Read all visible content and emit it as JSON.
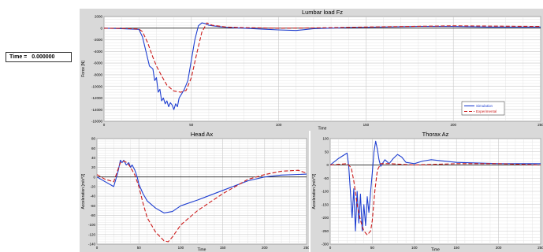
{
  "time_display": {
    "label": "Time =",
    "value": "0.000000"
  },
  "colors": {
    "simulation": "#1f3fd1",
    "experimental": "#cc1a1a",
    "panel": "#d9d9d9",
    "plot": "#ffffff",
    "grid": "#c8c8c8"
  },
  "chart_data": [
    {
      "type": "line",
      "title": "Lumbar load Fz",
      "xlabel": "Time",
      "ylabel": "Force [N]",
      "xlim": [
        0,
        250
      ],
      "ylim": [
        -16000,
        2000
      ],
      "xticks": [
        0,
        50,
        100,
        150,
        200,
        250
      ],
      "yticks": [
        2000,
        0,
        -2000,
        -4000,
        -6000,
        -8000,
        -10000,
        -12000,
        -14000,
        -16000
      ],
      "legend": "bottom-right",
      "series": [
        {
          "name": "Simulation",
          "style": "solid",
          "x": [
            0,
            10,
            20,
            22,
            24,
            26,
            28,
            29,
            30,
            31,
            32,
            33,
            34,
            35,
            36,
            37,
            38,
            39,
            40,
            41,
            42,
            43,
            44,
            45,
            46,
            48,
            50,
            52,
            54,
            56,
            58,
            60,
            65,
            70,
            80,
            90,
            100,
            110,
            120,
            140,
            160,
            180,
            200,
            220,
            250
          ],
          "y": [
            0,
            -100,
            -200,
            -1500,
            -4000,
            -6500,
            -7000,
            -9000,
            -8500,
            -11000,
            -10500,
            -12500,
            -12000,
            -13000,
            -12500,
            -13500,
            -12800,
            -13200,
            -14000,
            -13000,
            -13500,
            -12000,
            -11500,
            -11000,
            -10500,
            -9000,
            -5500,
            -2000,
            400,
            900,
            800,
            500,
            300,
            150,
            0,
            -150,
            -300,
            -400,
            -100,
            100,
            200,
            300,
            300,
            200,
            200
          ]
        },
        {
          "name": "Experimental",
          "style": "dashed",
          "x": [
            0,
            10,
            20,
            22,
            25,
            28,
            30,
            33,
            36,
            40,
            44,
            47,
            50,
            53,
            56,
            59,
            62,
            70,
            80,
            100,
            120,
            150,
            200,
            250
          ],
          "y": [
            0,
            -50,
            -150,
            -600,
            -2500,
            -5000,
            -6500,
            -8200,
            -9800,
            -10800,
            -11000,
            -10700,
            -8500,
            -4500,
            -700,
            900,
            500,
            200,
            100,
            0,
            50,
            200,
            400,
            300
          ]
        }
      ]
    },
    {
      "type": "line",
      "title": "Head Ax",
      "xlabel": "Time",
      "ylabel": "Acceleration [m/s^2]",
      "xlim": [
        0,
        250
      ],
      "ylim": [
        -140,
        80
      ],
      "xticks": [
        0,
        50,
        100,
        150,
        200,
        250
      ],
      "yticks": [
        80,
        60,
        40,
        20,
        0,
        -20,
        -40,
        -60,
        -80,
        -100,
        -120,
        -140
      ],
      "series": [
        {
          "name": "Simulation",
          "style": "solid",
          "x": [
            0,
            10,
            20,
            25,
            28,
            30,
            32,
            35,
            38,
            40,
            42,
            45,
            48,
            50,
            55,
            60,
            70,
            80,
            90,
            100,
            120,
            150,
            180,
            200,
            220,
            250
          ],
          "y": [
            0,
            -10,
            -20,
            10,
            35,
            30,
            35,
            25,
            30,
            20,
            25,
            15,
            0,
            -15,
            -35,
            -50,
            -65,
            -75,
            -72,
            -60,
            -48,
            -28,
            -8,
            0,
            4,
            6
          ]
        },
        {
          "name": "Experimental",
          "style": "dashed",
          "x": [
            0,
            10,
            20,
            25,
            28,
            32,
            36,
            40,
            45,
            50,
            55,
            60,
            70,
            80,
            85,
            90,
            100,
            120,
            150,
            180,
            200,
            220,
            240,
            250
          ],
          "y": [
            5,
            -5,
            -10,
            15,
            30,
            33,
            30,
            20,
            5,
            -20,
            -55,
            -85,
            -115,
            -133,
            -135,
            -125,
            -100,
            -70,
            -35,
            -5,
            5,
            12,
            14,
            8
          ]
        }
      ]
    },
    {
      "type": "line",
      "title": "Thorax Az",
      "xlabel": "Time",
      "ylabel": "Acceleration [m/s^2]",
      "xlim": [
        0,
        250
      ],
      "ylim": [
        -300,
        100
      ],
      "xticks": [
        0,
        50,
        100,
        150,
        200,
        250
      ],
      "yticks": [
        100,
        50,
        0,
        -50,
        -100,
        -150,
        -200,
        -250,
        -300
      ],
      "series": [
        {
          "name": "Simulation",
          "style": "solid",
          "x": [
            0,
            10,
            20,
            22,
            24,
            26,
            28,
            30,
            32,
            34,
            36,
            38,
            40,
            42,
            44,
            46,
            48,
            50,
            52,
            54,
            56,
            58,
            60,
            62,
            65,
            70,
            75,
            80,
            85,
            90,
            100,
            110,
            120,
            150,
            200,
            250
          ],
          "y": [
            0,
            25,
            45,
            -5,
            -100,
            -200,
            -90,
            -250,
            -100,
            -220,
            -110,
            -250,
            -150,
            -230,
            -120,
            -180,
            -100,
            -30,
            50,
            90,
            60,
            20,
            -5,
            5,
            20,
            5,
            25,
            40,
            30,
            10,
            5,
            15,
            20,
            10,
            5,
            5
          ]
        },
        {
          "name": "Experimental",
          "style": "dashed",
          "x": [
            0,
            20,
            25,
            28,
            32,
            36,
            40,
            44,
            48,
            50,
            53,
            56,
            60,
            70,
            100,
            150,
            200,
            250
          ],
          "y": [
            0,
            5,
            -10,
            -60,
            -150,
            -210,
            -250,
            -265,
            -250,
            -210,
            -100,
            -20,
            5,
            5,
            0,
            5,
            5,
            0
          ]
        }
      ]
    }
  ]
}
